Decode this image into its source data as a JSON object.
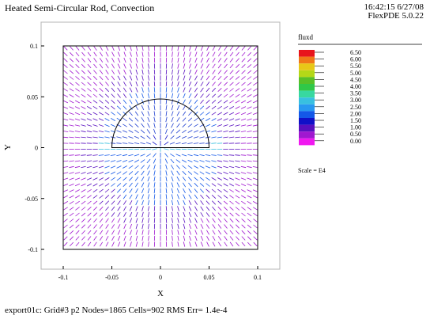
{
  "header": {
    "title": "Heated Semi-Circular Rod, Convection",
    "timestamp": "16:42:15 6/27/08",
    "version": "FlexPDE 5.0.22"
  },
  "footer": {
    "text": "export01c:  Grid#3  p2  Nodes=1865 Cells=902 RMS Err= 1.4e-4"
  },
  "legend": {
    "title": "fluxd",
    "scale_label": "Scale = E4",
    "levels": [
      "6.50",
      "6.00",
      "5.50",
      "5.00",
      "4.50",
      "4.00",
      "3.50",
      "3.00",
      "2.50",
      "2.00",
      "1.50",
      "1.00",
      "0.50",
      "0.00"
    ],
    "colors": [
      "#e8141c",
      "#f07818",
      "#e8c818",
      "#b4d818",
      "#58c028",
      "#30c848",
      "#38d8a0",
      "#38c0e0",
      "#2898f0",
      "#1458e8",
      "#1010c8",
      "#5810c0",
      "#a018d0",
      "#f018f0"
    ]
  },
  "chart_data": {
    "type": "vector_field",
    "title": "Heated Semi-Circular Rod, Convection",
    "xlabel": "X",
    "ylabel": "Y",
    "xlim": [
      -0.1,
      0.1
    ],
    "ylim": [
      -0.1,
      0.1
    ],
    "xticks": [
      -0.1,
      -0.05,
      0,
      0.05,
      0.1
    ],
    "yticks": [
      -0.1,
      -0.05,
      0,
      0.05,
      0.1
    ],
    "xtick_labels": [
      "-0.1",
      "-0.05",
      "0",
      "0.05",
      "0.1"
    ],
    "ytick_labels": [
      "-0.1",
      "-0.05",
      "0",
      "0.05",
      "0.1"
    ],
    "rod": {
      "shape": "semicircle",
      "center": [
        0,
        0
      ],
      "radius": 0.05
    },
    "domain_box": [
      -0.1,
      -0.1,
      0.1,
      0.1
    ]
  }
}
